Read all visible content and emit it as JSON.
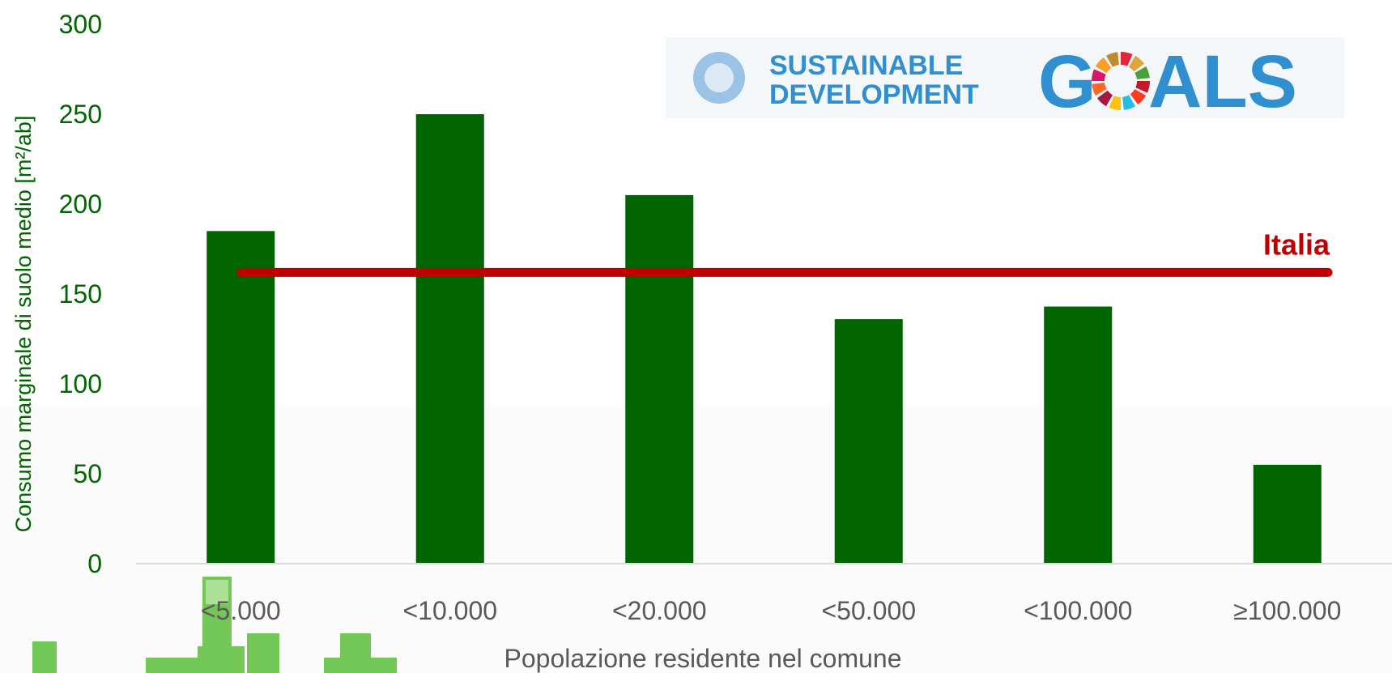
{
  "chart_data": {
    "type": "bar",
    "categories": [
      "<5.000",
      "<10.000",
      "<20.000",
      "<50.000",
      "<100.000",
      "≥100.000"
    ],
    "values": [
      185,
      250,
      205,
      136,
      143,
      55
    ],
    "xlabel": "Popolazione residente nel comune",
    "ylabel": "Consumo marginale di suolo medio [m²/ab]",
    "ylim": [
      0,
      300
    ],
    "yticks": [
      0,
      50,
      100,
      150,
      200,
      250,
      300
    ],
    "grid": false,
    "reference_line": {
      "label": "Italia",
      "value": 162
    },
    "colors": {
      "bar": "#006400",
      "reference": "#c00000",
      "tick_y": "#006400",
      "tick_x": "#595959"
    }
  },
  "logo": {
    "line1": "SUSTAINABLE",
    "line2": "DEVELOPMENT",
    "word": "GOALS",
    "colors": {
      "blue": "#2f8fcf",
      "ring": [
        "#e5243b",
        "#dda63a",
        "#4c9f38",
        "#c5192d",
        "#ff3a21",
        "#26bde2",
        "#fcc30b",
        "#a21942",
        "#fd6925",
        "#dd1367",
        "#fd9d24",
        "#bf8b2e"
      ]
    }
  },
  "decoration": {
    "name": "city-buildings-icon",
    "color": "#5bbf3a"
  }
}
